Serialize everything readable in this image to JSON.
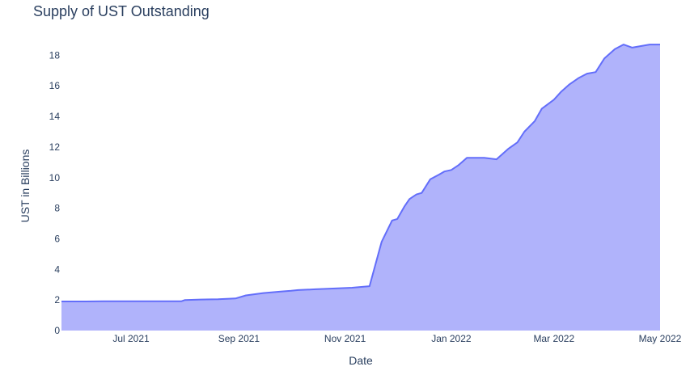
{
  "chart_data": {
    "type": "area",
    "title": "Supply of UST Outstanding",
    "xlabel": "Date",
    "ylabel": "UST in Billions",
    "xlim": [
      "2021-05-22",
      "2022-05-01"
    ],
    "ylim": [
      0,
      19.5
    ],
    "grid": false,
    "legend": "none",
    "line_color": "#636efa",
    "fill_color": "#b0b3fb",
    "x_ticks": [
      {
        "date": "2021-07-01",
        "label": "Jul 2021"
      },
      {
        "date": "2021-09-01",
        "label": "Sep 2021"
      },
      {
        "date": "2021-11-01",
        "label": "Nov 2021"
      },
      {
        "date": "2022-01-01",
        "label": "Jan 2022"
      },
      {
        "date": "2022-03-01",
        "label": "Mar 2022"
      },
      {
        "date": "2022-05-01",
        "label": "May 2022"
      }
    ],
    "y_ticks": [
      {
        "value": 0,
        "label": "0"
      },
      {
        "value": 2,
        "label": "2"
      },
      {
        "value": 4,
        "label": "4"
      },
      {
        "value": 6,
        "label": "6"
      },
      {
        "value": 8,
        "label": "8"
      },
      {
        "value": 10,
        "label": "10"
      },
      {
        "value": 12,
        "label": "12"
      },
      {
        "value": 14,
        "label": "14"
      },
      {
        "value": 16,
        "label": "16"
      },
      {
        "value": 18,
        "label": "18"
      }
    ],
    "series": [
      {
        "x": [
          "2021-05-22",
          "2021-06-05",
          "2021-06-20",
          "2021-07-05",
          "2021-07-20",
          "2021-07-30",
          "2021-08-01",
          "2021-08-10",
          "2021-08-20",
          "2021-08-30",
          "2021-09-05",
          "2021-09-15",
          "2021-09-25",
          "2021-10-01",
          "2021-10-05",
          "2021-10-15",
          "2021-10-25",
          "2021-11-05",
          "2021-11-15",
          "2021-11-22",
          "2021-11-28",
          "2021-12-01",
          "2021-12-02",
          "2021-12-05",
          "2021-12-08",
          "2021-12-12",
          "2021-12-15",
          "2021-12-20",
          "2021-12-25",
          "2021-12-28",
          "2022-01-01",
          "2022-01-05",
          "2022-01-10",
          "2022-01-15",
          "2022-01-20",
          "2022-01-27",
          "2022-02-03",
          "2022-02-08",
          "2022-02-12",
          "2022-02-18",
          "2022-02-22",
          "2022-03-01",
          "2022-03-05",
          "2022-03-10",
          "2022-03-15",
          "2022-03-20",
          "2022-03-25",
          "2022-03-30",
          "2022-04-05",
          "2022-04-10",
          "2022-04-15",
          "2022-04-20",
          "2022-04-25",
          "2022-05-01"
        ],
        "y": [
          1.9,
          1.9,
          1.92,
          1.92,
          1.92,
          1.92,
          2.0,
          2.03,
          2.05,
          2.1,
          2.3,
          2.45,
          2.55,
          2.6,
          2.65,
          2.7,
          2.75,
          2.8,
          2.9,
          5.8,
          7.2,
          7.3,
          7.5,
          8.1,
          8.6,
          8.9,
          9.0,
          9.9,
          10.2,
          10.4,
          10.5,
          10.8,
          11.3,
          11.3,
          11.3,
          11.2,
          11.9,
          12.3,
          13.0,
          13.7,
          14.5,
          15.1,
          15.6,
          16.1,
          16.5,
          16.8,
          16.9,
          17.8,
          18.4,
          18.7,
          18.5,
          18.6,
          18.7,
          18.7
        ]
      }
    ]
  }
}
